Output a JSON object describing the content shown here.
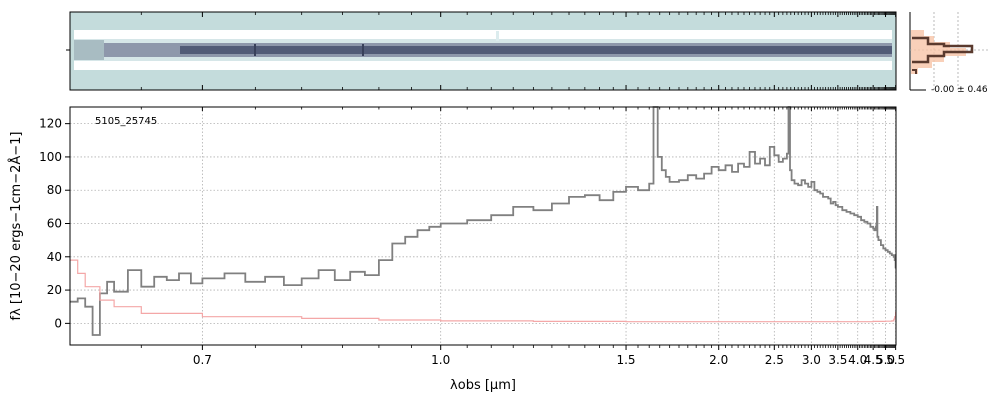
{
  "chart_data": {
    "type": "line",
    "object_label": "5105_25745",
    "xlabel": "λobs [µm]",
    "ylabel": "fλ [10−20 ergs−1cm−2Å−1]",
    "x_scale": "reciprocal",
    "xlim": [
      0.6,
      5.52
    ],
    "ylim": [
      -13,
      130
    ],
    "x_ticks": [
      0.7,
      1.0,
      1.5,
      2.0,
      2.5,
      3.0,
      3.5,
      4.0,
      4.5,
      5.0,
      5.5
    ],
    "x_tick_labels": [
      "0.7",
      "1.0",
      "1.5",
      "2.0",
      "2.5",
      "3.0",
      "3.5",
      "4.0",
      "4.5",
      "5.0",
      "5.5"
    ],
    "y_ticks": [
      0,
      20,
      40,
      60,
      80,
      100,
      120
    ],
    "y_tick_labels": [
      "0",
      "20",
      "40",
      "60",
      "80",
      "100",
      "120"
    ],
    "grid": true,
    "series": [
      {
        "color": "#808080",
        "x": [
          0.6,
          0.605,
          0.61,
          0.615,
          0.62,
          0.625,
          0.63,
          0.64,
          0.65,
          0.66,
          0.67,
          0.68,
          0.69,
          0.7,
          0.72,
          0.74,
          0.76,
          0.78,
          0.8,
          0.82,
          0.84,
          0.86,
          0.88,
          0.9,
          0.92,
          0.94,
          0.96,
          0.98,
          1.0,
          1.05,
          1.1,
          1.15,
          1.2,
          1.25,
          1.3,
          1.35,
          1.4,
          1.45,
          1.5,
          1.55,
          1.6,
          1.62,
          1.64,
          1.66,
          1.68,
          1.7,
          1.75,
          1.8,
          1.85,
          1.9,
          1.95,
          2.0,
          2.05,
          2.1,
          2.15,
          2.2,
          2.25,
          2.3,
          2.35,
          2.4,
          2.45,
          2.5,
          2.55,
          2.6,
          2.65,
          2.67,
          2.69,
          2.71,
          2.75,
          2.8,
          2.85,
          2.9,
          2.95,
          3.0,
          3.05,
          3.1,
          3.15,
          3.2,
          3.25,
          3.3,
          3.35,
          3.4,
          3.45,
          3.5,
          3.6,
          3.7,
          3.8,
          3.9,
          4.0,
          4.1,
          4.2,
          4.3,
          4.4,
          4.5,
          4.55,
          4.6,
          4.62,
          4.64,
          4.66,
          4.7,
          4.8,
          4.9,
          5.0,
          5.1,
          5.2,
          5.3,
          5.4,
          5.45,
          5.48,
          5.5
        ],
        "y": [
          13,
          15,
          10,
          -7,
          18,
          25,
          19,
          32,
          22,
          28,
          26,
          30,
          24,
          27,
          30,
          25,
          28,
          23,
          27,
          32,
          26,
          31,
          29,
          38,
          48,
          52,
          56,
          58,
          60,
          62,
          65,
          70,
          68,
          72,
          76,
          77,
          74,
          79,
          82,
          80,
          84,
          130,
          100,
          92,
          88,
          85,
          86,
          89,
          87,
          90,
          94,
          92,
          95,
          91,
          96,
          94,
          103,
          96,
          99,
          95,
          106,
          101,
          97,
          99,
          102,
          130,
          92,
          86,
          84,
          83,
          86,
          84,
          82,
          85,
          80,
          79,
          78,
          76,
          76,
          75,
          72,
          73,
          71,
          70,
          68,
          67,
          66,
          65,
          64,
          62,
          61,
          60,
          58,
          57,
          56,
          58,
          60,
          70,
          52,
          50,
          47,
          45,
          44,
          43,
          42,
          41,
          40,
          38,
          41,
          33
        ]
      },
      {
        "color": "#f4a7a7",
        "x": [
          0.6,
          0.605,
          0.61,
          0.62,
          0.63,
          0.65,
          0.7,
          0.8,
          0.9,
          1.0,
          1.2,
          1.5,
          2.0,
          2.5,
          3.0,
          3.5,
          4.0,
          4.5,
          5.0,
          5.3,
          5.4,
          5.45,
          5.5
        ],
        "y": [
          38,
          30,
          22,
          14,
          10,
          6,
          4,
          3,
          2,
          1.5,
          1.2,
          1.0,
          1.0,
          1.0,
          1.0,
          1.0,
          1.0,
          1.2,
          1.3,
          1.5,
          2.5,
          4,
          7
        ]
      }
    ]
  },
  "header": {
    "histogram_label": "-0.00 ± 0.46"
  }
}
